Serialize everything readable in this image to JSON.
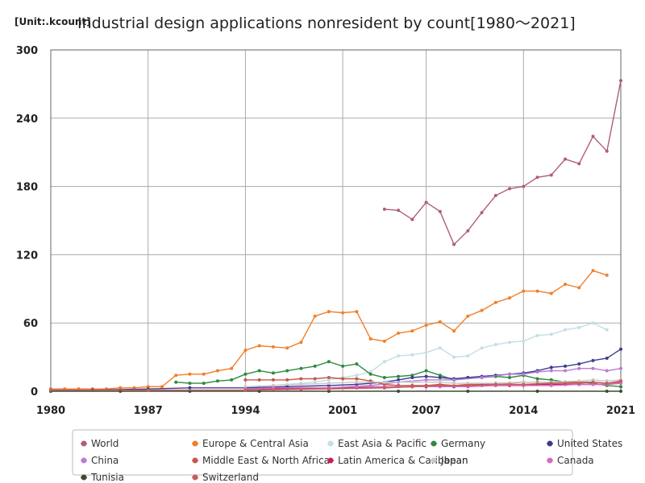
{
  "chart_data": {
    "type": "line",
    "title": "Industrial design applications nonresident by count[1980～2021]",
    "unit_label": "[Unit:.kcount]",
    "xlim": [
      1980,
      2021
    ],
    "ylim": [
      0,
      300
    ],
    "x_ticks": [
      1980,
      1987,
      1994,
      2001,
      2007,
      2014,
      2021
    ],
    "y_ticks": [
      0,
      60,
      120,
      180,
      240,
      300
    ],
    "grid": true,
    "legend_position": "bottom",
    "series": [
      {
        "name": "World",
        "color": "#b05c7a",
        "points": [
          [
            2004,
            160
          ],
          [
            2005,
            159
          ],
          [
            2006,
            151
          ],
          [
            2007,
            166
          ],
          [
            2008,
            158
          ],
          [
            2009,
            129
          ],
          [
            2010,
            141
          ],
          [
            2011,
            157
          ],
          [
            2012,
            172
          ],
          [
            2013,
            178
          ],
          [
            2014,
            180
          ],
          [
            2015,
            188
          ],
          [
            2016,
            190
          ],
          [
            2017,
            204
          ],
          [
            2018,
            200
          ],
          [
            2019,
            224
          ],
          [
            2020,
            211
          ],
          [
            2021,
            273
          ]
        ]
      },
      {
        "name": "Europe & Central Asia",
        "color": "#f07f2a",
        "points": [
          [
            1980,
            2
          ],
          [
            1981,
            2
          ],
          [
            1982,
            2
          ],
          [
            1983,
            2
          ],
          [
            1984,
            2
          ],
          [
            1985,
            3
          ],
          [
            1986,
            3
          ],
          [
            1987,
            4
          ],
          [
            1988,
            4
          ],
          [
            1989,
            14
          ],
          [
            1990,
            15
          ],
          [
            1991,
            15
          ],
          [
            1992,
            18
          ],
          [
            1993,
            20
          ],
          [
            1994,
            36
          ],
          [
            1995,
            40
          ],
          [
            1996,
            39
          ],
          [
            1997,
            38
          ],
          [
            1998,
            43
          ],
          [
            1999,
            66
          ],
          [
            2000,
            70
          ],
          [
            2001,
            69
          ],
          [
            2002,
            70
          ],
          [
            2003,
            46
          ],
          [
            2004,
            44
          ],
          [
            2005,
            51
          ],
          [
            2006,
            53
          ],
          [
            2007,
            58
          ],
          [
            2008,
            61
          ],
          [
            2009,
            53
          ],
          [
            2010,
            66
          ],
          [
            2011,
            71
          ],
          [
            2012,
            78
          ],
          [
            2013,
            82
          ],
          [
            2014,
            88
          ],
          [
            2015,
            88
          ],
          [
            2016,
            86
          ],
          [
            2017,
            94
          ],
          [
            2018,
            91
          ],
          [
            2019,
            106
          ],
          [
            2020,
            102
          ]
        ]
      },
      {
        "name": "East Asia & Pacific",
        "color": "#c2dfe6",
        "points": [
          [
            1994,
            3
          ],
          [
            1995,
            4
          ],
          [
            1996,
            5
          ],
          [
            1997,
            6
          ],
          [
            1998,
            7
          ],
          [
            1999,
            8
          ],
          [
            2000,
            10
          ],
          [
            2001,
            12
          ],
          [
            2002,
            14
          ],
          [
            2003,
            17
          ],
          [
            2004,
            26
          ],
          [
            2005,
            31
          ],
          [
            2006,
            32
          ],
          [
            2007,
            34
          ],
          [
            2008,
            38
          ],
          [
            2009,
            30
          ],
          [
            2010,
            31
          ],
          [
            2011,
            38
          ],
          [
            2012,
            41
          ],
          [
            2013,
            43
          ],
          [
            2014,
            44
          ],
          [
            2015,
            49
          ],
          [
            2016,
            50
          ],
          [
            2017,
            54
          ],
          [
            2018,
            56
          ],
          [
            2019,
            60
          ],
          [
            2020,
            54
          ]
        ]
      },
      {
        "name": "Germany",
        "color": "#2e8a3e",
        "points": [
          [
            1989,
            8
          ],
          [
            1990,
            7
          ],
          [
            1991,
            7
          ],
          [
            1992,
            9
          ],
          [
            1993,
            10
          ],
          [
            1994,
            15
          ],
          [
            1995,
            18
          ],
          [
            1996,
            16
          ],
          [
            1997,
            18
          ],
          [
            1998,
            20
          ],
          [
            1999,
            22
          ],
          [
            2000,
            26
          ],
          [
            2001,
            22
          ],
          [
            2002,
            24
          ],
          [
            2003,
            15
          ],
          [
            2004,
            12
          ],
          [
            2005,
            13
          ],
          [
            2006,
            14
          ],
          [
            2007,
            18
          ],
          [
            2008,
            14
          ],
          [
            2009,
            10
          ],
          [
            2010,
            12
          ],
          [
            2011,
            12
          ],
          [
            2012,
            13
          ],
          [
            2013,
            12
          ],
          [
            2014,
            14
          ],
          [
            2015,
            11
          ],
          [
            2016,
            10
          ],
          [
            2017,
            8
          ],
          [
            2018,
            8
          ],
          [
            2019,
            7
          ],
          [
            2020,
            5
          ],
          [
            2021,
            4
          ]
        ]
      },
      {
        "name": "United States",
        "color": "#3d3d8f",
        "points": [
          [
            1980,
            1
          ],
          [
            1983,
            1
          ],
          [
            1987,
            2
          ],
          [
            1990,
            3
          ],
          [
            1994,
            3
          ],
          [
            1997,
            4
          ],
          [
            2000,
            5
          ],
          [
            2002,
            6
          ],
          [
            2004,
            8
          ],
          [
            2005,
            10
          ],
          [
            2006,
            12
          ],
          [
            2007,
            13
          ],
          [
            2008,
            12
          ],
          [
            2009,
            11
          ],
          [
            2010,
            12
          ],
          [
            2011,
            13
          ],
          [
            2012,
            14
          ],
          [
            2013,
            15
          ],
          [
            2014,
            16
          ],
          [
            2015,
            18
          ],
          [
            2016,
            21
          ],
          [
            2017,
            22
          ],
          [
            2018,
            24
          ],
          [
            2019,
            27
          ],
          [
            2020,
            29
          ],
          [
            2021,
            37
          ]
        ]
      },
      {
        "name": "China",
        "color": "#b87bd6",
        "points": [
          [
            1994,
            1
          ],
          [
            1997,
            2
          ],
          [
            2000,
            3
          ],
          [
            2003,
            5
          ],
          [
            2005,
            8
          ],
          [
            2007,
            10
          ],
          [
            2009,
            10
          ],
          [
            2011,
            12
          ],
          [
            2013,
            15
          ],
          [
            2014,
            15
          ],
          [
            2015,
            17
          ],
          [
            2016,
            18
          ],
          [
            2017,
            18
          ],
          [
            2018,
            20
          ],
          [
            2019,
            20
          ],
          [
            2020,
            18
          ],
          [
            2021,
            20
          ]
        ]
      },
      {
        "name": "Middle East & North Africa",
        "color": "#c8574a",
        "points": [
          [
            1994,
            10
          ],
          [
            1995,
            10
          ],
          [
            1996,
            10
          ],
          [
            1997,
            10
          ],
          [
            1998,
            11
          ],
          [
            1999,
            11
          ],
          [
            2000,
            12
          ],
          [
            2001,
            11
          ],
          [
            2002,
            11
          ],
          [
            2003,
            9
          ],
          [
            2004,
            6
          ],
          [
            2005,
            5
          ],
          [
            2006,
            5
          ],
          [
            2007,
            5
          ],
          [
            2008,
            6
          ],
          [
            2009,
            5
          ],
          [
            2010,
            6
          ],
          [
            2011,
            6
          ],
          [
            2012,
            7
          ],
          [
            2013,
            7
          ],
          [
            2014,
            8
          ],
          [
            2015,
            8
          ],
          [
            2016,
            8
          ],
          [
            2017,
            8
          ],
          [
            2018,
            8
          ],
          [
            2019,
            8
          ],
          [
            2020,
            7
          ],
          [
            2021,
            8
          ]
        ]
      },
      {
        "name": "Latin America & Caribbean",
        "color": "#c81e4e",
        "points": [
          [
            1994,
            1
          ],
          [
            1996,
            2
          ],
          [
            1998,
            2
          ],
          [
            2000,
            3
          ],
          [
            2002,
            3
          ],
          [
            2004,
            3
          ],
          [
            2006,
            4
          ],
          [
            2007,
            4
          ],
          [
            2008,
            5
          ],
          [
            2009,
            4
          ],
          [
            2010,
            4
          ],
          [
            2011,
            5
          ],
          [
            2012,
            5
          ],
          [
            2013,
            5
          ],
          [
            2014,
            5
          ],
          [
            2015,
            6
          ],
          [
            2016,
            6
          ],
          [
            2017,
            6
          ],
          [
            2018,
            6
          ],
          [
            2019,
            6
          ],
          [
            2020,
            6
          ],
          [
            2021,
            7
          ]
        ]
      },
      {
        "name": "Japan",
        "color": "#c8c8c8",
        "points": [
          [
            1994,
            4
          ],
          [
            1996,
            5
          ],
          [
            1998,
            6
          ],
          [
            2000,
            7
          ],
          [
            2002,
            8
          ],
          [
            2004,
            8
          ],
          [
            2006,
            8
          ],
          [
            2008,
            8
          ],
          [
            2009,
            7
          ],
          [
            2010,
            7
          ],
          [
            2012,
            7
          ],
          [
            2014,
            8
          ],
          [
            2016,
            8
          ],
          [
            2018,
            9
          ],
          [
            2019,
            10
          ],
          [
            2020,
            9
          ],
          [
            2021,
            10
          ]
        ]
      },
      {
        "name": "Canada",
        "color": "#d46ac4",
        "points": [
          [
            1994,
            2
          ],
          [
            1996,
            3
          ],
          [
            1998,
            3
          ],
          [
            2000,
            3
          ],
          [
            2002,
            4
          ],
          [
            2004,
            4
          ],
          [
            2006,
            4
          ],
          [
            2008,
            4
          ],
          [
            2010,
            4
          ],
          [
            2012,
            5
          ],
          [
            2014,
            5
          ],
          [
            2016,
            5
          ],
          [
            2018,
            6
          ],
          [
            2019,
            6
          ],
          [
            2020,
            6
          ],
          [
            2021,
            7
          ]
        ]
      },
      {
        "name": "Tunisia",
        "color": "#3c4a34",
        "points": [
          [
            1980,
            0
          ],
          [
            1985,
            0
          ],
          [
            1990,
            0
          ],
          [
            1995,
            0
          ],
          [
            2000,
            0
          ],
          [
            2005,
            0
          ],
          [
            2010,
            0
          ],
          [
            2015,
            0
          ],
          [
            2020,
            0
          ],
          [
            2021,
            0
          ]
        ]
      },
      {
        "name": "Switzerland",
        "color": "#c65d5d",
        "points": [
          [
            1980,
            1
          ],
          [
            1987,
            1
          ],
          [
            1994,
            1
          ],
          [
            2000,
            2
          ],
          [
            2004,
            3
          ],
          [
            2006,
            4
          ],
          [
            2008,
            5
          ],
          [
            2010,
            5
          ],
          [
            2012,
            6
          ],
          [
            2014,
            6
          ],
          [
            2016,
            7
          ],
          [
            2018,
            7
          ],
          [
            2019,
            8
          ],
          [
            2020,
            7
          ],
          [
            2021,
            9
          ]
        ]
      }
    ]
  }
}
